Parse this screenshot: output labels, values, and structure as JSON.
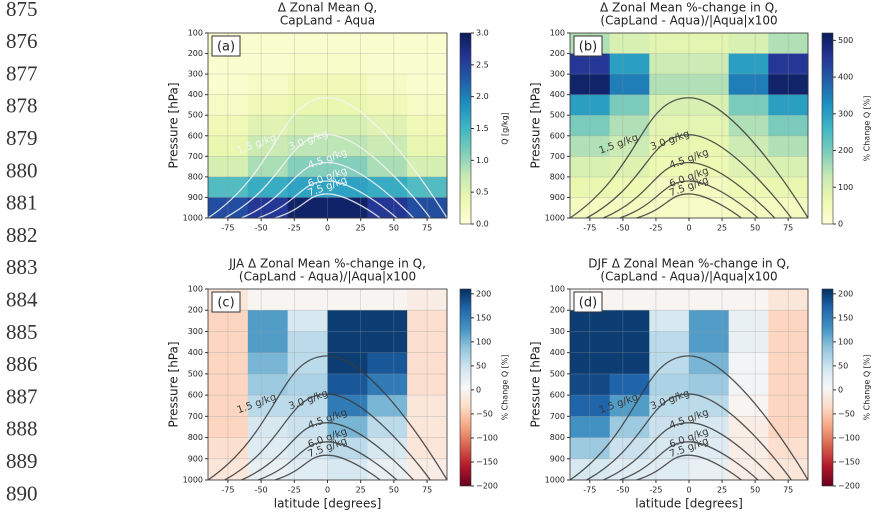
{
  "line_numbers": [
    "875",
    "876",
    "877",
    "878",
    "879",
    "880",
    "881",
    "882",
    "883",
    "884",
    "885",
    "886",
    "887",
    "888",
    "889",
    "890"
  ],
  "chart_data": [
    {
      "type": "heatmap",
      "panel_label": "(a)",
      "title": [
        "Δ Zonal Mean Q,",
        "CapLand - Aqua"
      ],
      "ylabel": "Pressure [hPa]",
      "colorbar_label": "Q [g/kg]",
      "colormap": "YlGnBu",
      "xbins": [
        -90,
        -60,
        -30,
        0,
        30,
        60,
        90
      ],
      "ybins": [
        100,
        200,
        300,
        400,
        500,
        600,
        700,
        800,
        900,
        1000
      ],
      "values": [
        [
          0.1,
          0.1,
          0.1,
          0.1,
          0.1,
          0.1
        ],
        [
          0.1,
          0.1,
          0.15,
          0.15,
          0.1,
          0.1
        ],
        [
          0.1,
          0.2,
          0.3,
          0.3,
          0.2,
          0.1
        ],
        [
          0.2,
          0.3,
          0.4,
          0.4,
          0.3,
          0.2
        ],
        [
          0.3,
          0.5,
          0.6,
          0.6,
          0.5,
          0.3
        ],
        [
          0.4,
          0.7,
          0.8,
          0.8,
          0.7,
          0.4
        ],
        [
          0.6,
          0.9,
          1.1,
          1.1,
          0.9,
          0.6
        ],
        [
          1.4,
          1.6,
          1.7,
          1.7,
          1.6,
          1.4
        ],
        [
          2.4,
          2.6,
          2.9,
          2.9,
          2.6,
          2.4
        ]
      ],
      "xlim": [
        -90,
        90
      ],
      "ylim": [
        1000,
        100
      ],
      "xticks": [
        -75,
        -50,
        -25,
        0,
        25,
        50,
        75
      ],
      "yticks": [
        100,
        200,
        300,
        400,
        500,
        600,
        700,
        800,
        900,
        1000
      ],
      "clim": [
        0,
        3
      ],
      "cticks": [
        {
          "value": 0,
          "label": "0.0"
        },
        0.5,
        {
          "value": 1,
          "label": "1.0"
        },
        1.5,
        {
          "value": 2,
          "label": "2.0"
        },
        2.5,
        {
          "value": 3,
          "label": "3.0"
        }
      ],
      "contour_labels": [
        "1.5 g/kg",
        "3.0 g/kg",
        "4.5 g/kg",
        "6.0 g/kg",
        "7.5 g/kg"
      ],
      "contour_color": "#f4f4f4",
      "grid": true
    },
    {
      "type": "heatmap",
      "panel_label": "(b)",
      "title": [
        "Δ Zonal Mean %-change in Q,",
        "(CapLand - Aqua)/|Aqua|x100"
      ],
      "ylabel": "Pressure [hPa]",
      "colorbar_label": "% Change Q [%]",
      "colormap": "YlGnBu",
      "xbins": [
        -90,
        -60,
        -30,
        0,
        30,
        60,
        90
      ],
      "ybins": [
        100,
        200,
        300,
        400,
        500,
        600,
        700,
        800,
        900,
        1000
      ],
      "values": [
        [
          150,
          100,
          80,
          80,
          100,
          150
        ],
        [
          450,
          300,
          120,
          120,
          300,
          450
        ],
        [
          500,
          350,
          150,
          150,
          350,
          500
        ],
        [
          300,
          200,
          100,
          100,
          200,
          300
        ],
        [
          200,
          150,
          80,
          80,
          150,
          200
        ],
        [
          150,
          120,
          70,
          70,
          120,
          150
        ],
        [
          100,
          90,
          60,
          60,
          90,
          100
        ],
        [
          70,
          60,
          40,
          40,
          60,
          70
        ],
        [
          40,
          40,
          30,
          30,
          40,
          40
        ]
      ],
      "xlim": [
        -90,
        90
      ],
      "ylim": [
        1000,
        100
      ],
      "xticks": [
        -75,
        -50,
        -25,
        0,
        25,
        50,
        75
      ],
      "yticks": [
        100,
        200,
        300,
        400,
        500,
        600,
        700,
        800,
        900,
        1000
      ],
      "clim": [
        0,
        520
      ],
      "cticks": [
        0,
        100,
        200,
        300,
        400,
        500
      ],
      "contour_labels": [
        "1.5 g/kg",
        "3.0 g/kg",
        "4.5 g/kg",
        "6.0 g/kg",
        "7.5 g/kg"
      ],
      "contour_color": "#3a3a3a",
      "grid": true
    },
    {
      "type": "heatmap",
      "panel_label": "(c)",
      "title": [
        "JJA Δ Zonal Mean %-change in Q,",
        "(CapLand - Aqua)/|Aqua|x100"
      ],
      "ylabel": "Pressure [hPa]",
      "xlabel": "latitude [degrees]",
      "colorbar_label": "% Change Q [%]",
      "colormap": "RdBu",
      "xbins": [
        -90,
        -60,
        -30,
        0,
        30,
        60,
        90
      ],
      "ybins": [
        100,
        200,
        300,
        400,
        500,
        600,
        700,
        800,
        900,
        1000
      ],
      "values": [
        [
          -20,
          0,
          0,
          0,
          0,
          -10
        ],
        [
          -40,
          120,
          40,
          200,
          200,
          -30
        ],
        [
          -40,
          120,
          60,
          200,
          200,
          -30
        ],
        [
          -40,
          100,
          60,
          200,
          180,
          -30
        ],
        [
          -40,
          80,
          70,
          180,
          150,
          -30
        ],
        [
          -40,
          60,
          60,
          150,
          100,
          -20
        ],
        [
          -40,
          40,
          50,
          100,
          60,
          -20
        ],
        [
          -30,
          30,
          40,
          60,
          40,
          -20
        ],
        [
          -20,
          20,
          30,
          40,
          20,
          -10
        ]
      ],
      "xlim": [
        -90,
        90
      ],
      "ylim": [
        1000,
        100
      ],
      "xticks": [
        -75,
        -50,
        -25,
        0,
        25,
        50,
        75
      ],
      "yticks": [
        100,
        200,
        300,
        400,
        500,
        600,
        700,
        800,
        900,
        1000
      ],
      "clim": [
        -200,
        210
      ],
      "cticks": [
        {
          "value": -200,
          "label": "−200"
        },
        {
          "value": -150,
          "label": "−150"
        },
        {
          "value": -100,
          "label": "−100"
        },
        {
          "value": -50,
          "label": "−50"
        },
        0,
        50,
        100,
        150,
        200
      ],
      "contour_labels": [
        "1.5 g/kg",
        "3.0 g/kg",
        "4.5 g/kg",
        "6.0 g/kg",
        "7.5 g/kg"
      ],
      "contour_color": "#3a3a3a",
      "grid": true
    },
    {
      "type": "heatmap",
      "panel_label": "(d)",
      "title": [
        "DJF Δ Zonal Mean %-change in Q,",
        "(CapLand - Aqua)/|Aqua|x100"
      ],
      "ylabel": "Pressure [hPa]",
      "xlabel": "latitude [degrees]",
      "colorbar_label": "% Change Q [%]",
      "colormap": "RdBu",
      "xbins": [
        -90,
        -60,
        -30,
        0,
        30,
        60,
        90
      ],
      "ybins": [
        100,
        200,
        300,
        400,
        500,
        600,
        700,
        800,
        900,
        1000
      ],
      "values": [
        [
          0,
          0,
          0,
          0,
          0,
          -20
        ],
        [
          200,
          200,
          40,
          120,
          20,
          -40
        ],
        [
          200,
          200,
          60,
          120,
          20,
          -40
        ],
        [
          200,
          200,
          60,
          100,
          10,
          -40
        ],
        [
          190,
          170,
          70,
          80,
          10,
          -40
        ],
        [
          170,
          120,
          60,
          60,
          0,
          -40
        ],
        [
          130,
          80,
          50,
          40,
          -10,
          -40
        ],
        [
          80,
          50,
          40,
          30,
          -10,
          -30
        ],
        [
          40,
          30,
          30,
          20,
          -10,
          -20
        ]
      ],
      "xlim": [
        -90,
        90
      ],
      "ylim": [
        1000,
        100
      ],
      "xticks": [
        -75,
        -50,
        -25,
        0,
        25,
        50,
        75
      ],
      "yticks": [
        100,
        200,
        300,
        400,
        500,
        600,
        700,
        800,
        900,
        1000
      ],
      "clim": [
        -200,
        210
      ],
      "cticks": [
        {
          "value": -200,
          "label": "−200"
        },
        {
          "value": -150,
          "label": "−150"
        },
        {
          "value": -100,
          "label": "−100"
        },
        {
          "value": -50,
          "label": "−50"
        },
        0,
        50,
        100,
        150,
        200
      ],
      "contour_labels": [
        "1.5 g/kg",
        "3.0 g/kg",
        "4.5 g/kg",
        "6.0 g/kg",
        "7.5 g/kg"
      ],
      "contour_color": "#3a3a3a",
      "grid": true
    }
  ]
}
